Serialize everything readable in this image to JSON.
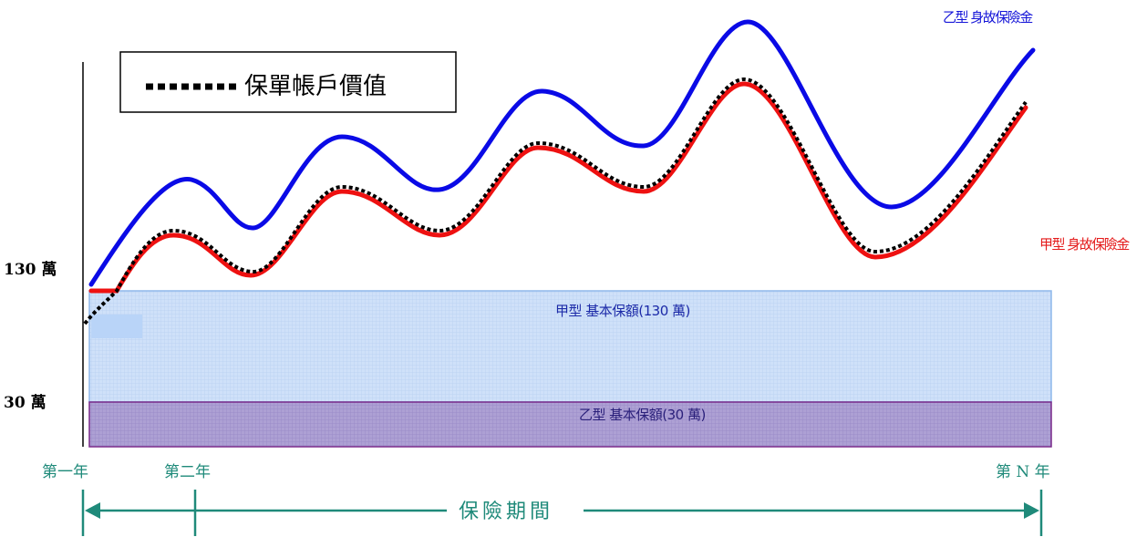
{
  "legend": {
    "account_value_label": "保單帳戶價值"
  },
  "curves": {
    "type_b_death_benefit_label": "乙型 身故保險金",
    "type_a_death_benefit_label": "甲型 身故保險金"
  },
  "y_axis": {
    "label_high": "130 萬",
    "label_low": "30 萬"
  },
  "boxes": {
    "type_a_basic_label": "甲型  基本保額(130 萬)",
    "type_b_basic_label": "乙型  基本保額(30 萬)"
  },
  "x_axis": {
    "year_1": "第一年",
    "year_2": "第二年",
    "year_n": "第 N 年",
    "period_label": "保險期間"
  },
  "colors": {
    "type_b_curve": "#0a0ae6",
    "type_a_curve": "#ee1111",
    "account_value": "#000000",
    "type_a_box_fill": "#c8dcf8",
    "type_a_box_stroke": "#8fb8ec",
    "type_b_box_fill": "#a99bd2",
    "type_b_box_stroke": "#7a2a8a",
    "axis_teal": "#1f8a7a"
  }
}
